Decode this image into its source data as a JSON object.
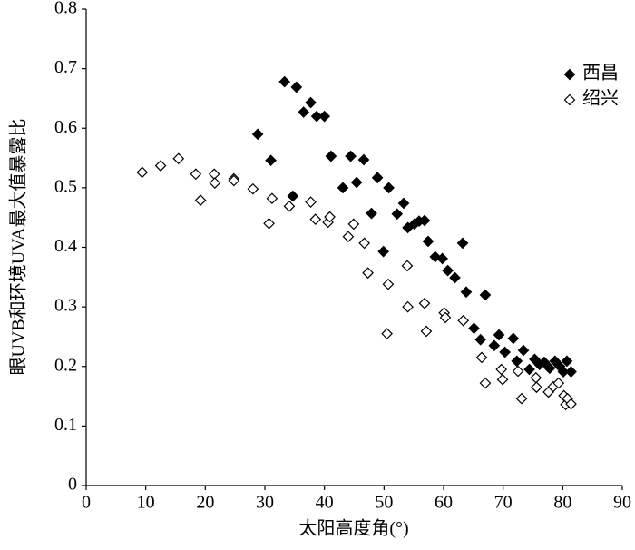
{
  "chart_data": {
    "type": "scatter",
    "x_label": "太阳高度角(°)",
    "y_label": "眼UVB和环境UVA最大值暴露比",
    "xlim": [
      0,
      90
    ],
    "xticks": [
      0,
      10,
      20,
      30,
      40,
      50,
      60,
      70,
      80,
      90
    ],
    "ylim": [
      0,
      0.8
    ],
    "yticks": [
      0,
      0.1,
      0.2,
      0.3,
      0.4,
      0.5,
      0.6,
      0.7,
      0.8
    ],
    "legend": "upper right",
    "series": [
      {
        "name": "西昌",
        "color": "#000000",
        "filled": true,
        "x": [
          28.8,
          31.0,
          33.3,
          35.3,
          36.5,
          37.7,
          38.7,
          40.0,
          41.1,
          34.7,
          43.1,
          44.4,
          45.4,
          46.6,
          47.9,
          48.9,
          49.9,
          50.8,
          52.2,
          53.3,
          54.0,
          55.1,
          55.9,
          56.8,
          57.4,
          58.6,
          59.8,
          60.7,
          61.9,
          63.2,
          63.8,
          65.1,
          66.2,
          67.0,
          68.5,
          69.3,
          70.3,
          71.7,
          72.3,
          73.4,
          74.4,
          75.3,
          76.1,
          76.9,
          77.8,
          78.7,
          79.5,
          80.1,
          80.7,
          81.4
        ],
        "values": [
          0.59,
          0.546,
          0.678,
          0.669,
          0.627,
          0.643,
          0.62,
          0.62,
          0.553,
          0.486,
          0.5,
          0.553,
          0.509,
          0.547,
          0.457,
          0.517,
          0.393,
          0.5,
          0.456,
          0.474,
          0.433,
          0.439,
          0.444,
          0.445,
          0.41,
          0.384,
          0.381,
          0.361,
          0.349,
          0.407,
          0.325,
          0.264,
          0.245,
          0.32,
          0.235,
          0.253,
          0.224,
          0.247,
          0.209,
          0.227,
          0.195,
          0.212,
          0.203,
          0.207,
          0.197,
          0.209,
          0.2,
          0.191,
          0.209,
          0.191
        ]
      },
      {
        "name": "绍兴",
        "color": "#000000",
        "filled": false,
        "x": [
          9.4,
          12.5,
          15.5,
          18.4,
          19.2,
          21.5,
          21.6,
          24.8,
          24.8,
          28.0,
          30.7,
          31.2,
          34.1,
          37.7,
          38.5,
          40.6,
          40.9,
          44.0,
          44.9,
          46.7,
          47.3,
          50.7,
          50.5,
          53.9,
          54.0,
          56.8,
          57.1,
          60.1,
          60.3,
          63.3,
          66.4,
          67.0,
          69.7,
          69.9,
          72.5,
          73.1,
          75.5,
          75.6,
          77.6,
          78.4,
          79.3,
          80.2,
          80.5,
          80.8,
          81.4
        ],
        "values": [
          0.526,
          0.537,
          0.549,
          0.523,
          0.479,
          0.523,
          0.508,
          0.515,
          0.512,
          0.498,
          0.44,
          0.482,
          0.469,
          0.476,
          0.447,
          0.442,
          0.451,
          0.418,
          0.439,
          0.407,
          0.357,
          0.338,
          0.255,
          0.369,
          0.3,
          0.306,
          0.259,
          0.29,
          0.282,
          0.277,
          0.215,
          0.172,
          0.195,
          0.178,
          0.192,
          0.146,
          0.181,
          0.165,
          0.157,
          0.166,
          0.172,
          0.151,
          0.136,
          0.146,
          0.137
        ]
      }
    ]
  }
}
